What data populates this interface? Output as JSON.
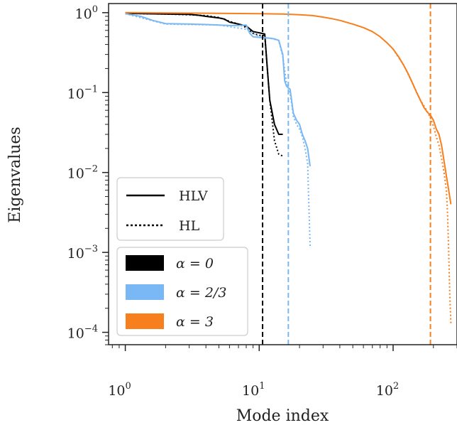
{
  "chart_data": {
    "type": "line",
    "xlabel": "Mode index",
    "ylabel": "Eigenvalues",
    "xscale": "log",
    "yscale": "log",
    "xlim": [
      0.75,
      300
    ],
    "ylim": [
      7e-05,
      1.3
    ],
    "grid": false,
    "x_ticks": [
      {
        "value": 1,
        "base": "10",
        "exp": "0"
      },
      {
        "value": 10,
        "base": "10",
        "exp": "1"
      },
      {
        "value": 100,
        "base": "10",
        "exp": "2"
      }
    ],
    "y_ticks": [
      {
        "value": 1,
        "base": "10",
        "exp": "0"
      },
      {
        "value": 0.1,
        "base": "10",
        "exp": "−1"
      },
      {
        "value": 0.01,
        "base": "10",
        "exp": "−2"
      },
      {
        "value": 0.001,
        "base": "10",
        "exp": "−3"
      },
      {
        "value": 0.0001,
        "base": "10",
        "exp": "−4"
      }
    ],
    "legend": {
      "placement": "lower-left",
      "styles": [
        {
          "label": "HLV",
          "dash": "solid"
        },
        {
          "label": "HL",
          "dash": "dotted"
        }
      ],
      "alphas": [
        {
          "label": "α = 0",
          "color": "#000000"
        },
        {
          "label": "α = 2/3",
          "color": "#7ab8f5"
        },
        {
          "label": "α = 3",
          "color": "#f77f1e"
        }
      ]
    },
    "vlines": [
      {
        "x": 10.6,
        "color": "#000000"
      },
      {
        "x": 16.5,
        "color": "#7ab8f5"
      },
      {
        "x": 190,
        "color": "#f77f1e"
      }
    ],
    "series": [
      {
        "color": "#000000",
        "dash": "solid",
        "x": [
          1,
          2,
          3,
          3.5,
          4,
          5,
          5.5,
          6,
          7,
          8,
          9,
          9.5,
          10,
          11,
          11.5,
          12,
          13,
          14,
          15
        ],
        "y": [
          0.98,
          0.96,
          0.95,
          0.93,
          0.9,
          0.86,
          0.83,
          0.76,
          0.72,
          0.68,
          0.58,
          0.57,
          0.56,
          0.54,
          0.2,
          0.08,
          0.04,
          0.03,
          0.03
        ]
      },
      {
        "color": "#000000",
        "dash": "dotted",
        "x": [
          1,
          2,
          3,
          4,
          5,
          6,
          7,
          8,
          9,
          10,
          11,
          11.5,
          12,
          13,
          14,
          15
        ],
        "y": [
          0.98,
          0.96,
          0.94,
          0.92,
          0.87,
          0.78,
          0.72,
          0.65,
          0.55,
          0.52,
          0.52,
          0.2,
          0.08,
          0.025,
          0.017,
          0.016
        ]
      },
      {
        "color": "#7ab8f5",
        "dash": "solid",
        "x": [
          1,
          1.3,
          1.6,
          2,
          3,
          4,
          5,
          6,
          7,
          8,
          8.5,
          9,
          10,
          12,
          13,
          14,
          15,
          15.5,
          16,
          17,
          18,
          19,
          20,
          21,
          22,
          23,
          24
        ],
        "y": [
          0.97,
          0.9,
          0.8,
          0.73,
          0.72,
          0.71,
          0.7,
          0.69,
          0.69,
          0.7,
          0.55,
          0.5,
          0.49,
          0.48,
          0.47,
          0.45,
          0.3,
          0.14,
          0.12,
          0.11,
          0.055,
          0.045,
          0.04,
          0.03,
          0.025,
          0.02,
          0.012
        ]
      },
      {
        "color": "#7ab8f5",
        "dash": "dotted",
        "x": [
          1,
          2,
          3,
          5,
          8,
          10,
          12,
          14,
          15,
          16,
          17,
          18,
          19,
          20,
          21,
          22,
          23,
          24
        ],
        "y": [
          0.97,
          0.72,
          0.71,
          0.7,
          0.62,
          0.5,
          0.48,
          0.45,
          0.28,
          0.13,
          0.1,
          0.05,
          0.04,
          0.035,
          0.028,
          0.02,
          0.013,
          0.0012
        ]
      },
      {
        "color": "#f77f1e",
        "dash": "solid",
        "x": [
          1,
          5,
          10,
          15,
          20,
          25,
          30,
          35,
          40,
          50,
          60,
          70,
          80,
          90,
          100,
          110,
          120,
          130,
          140,
          150,
          160,
          170,
          180,
          190,
          200,
          210,
          220,
          230,
          240,
          250,
          260,
          270
        ],
        "y": [
          1,
          0.98,
          0.97,
          0.96,
          0.94,
          0.92,
          0.88,
          0.84,
          0.8,
          0.72,
          0.65,
          0.58,
          0.5,
          0.42,
          0.35,
          0.28,
          0.22,
          0.17,
          0.13,
          0.1,
          0.08,
          0.065,
          0.057,
          0.052,
          0.045,
          0.035,
          0.03,
          0.022,
          0.014,
          0.009,
          0.006,
          0.004
        ]
      },
      {
        "color": "#f77f1e",
        "dash": "dotted",
        "x": [
          100,
          120,
          140,
          160,
          170,
          180,
          190,
          200,
          210,
          220,
          230,
          240,
          250,
          255,
          260,
          265,
          270
        ],
        "y": [
          0.35,
          0.22,
          0.13,
          0.08,
          0.068,
          0.058,
          0.048,
          0.038,
          0.028,
          0.022,
          0.015,
          0.01,
          0.006,
          0.003,
          0.001,
          0.0003,
          0.00013
        ]
      }
    ]
  }
}
